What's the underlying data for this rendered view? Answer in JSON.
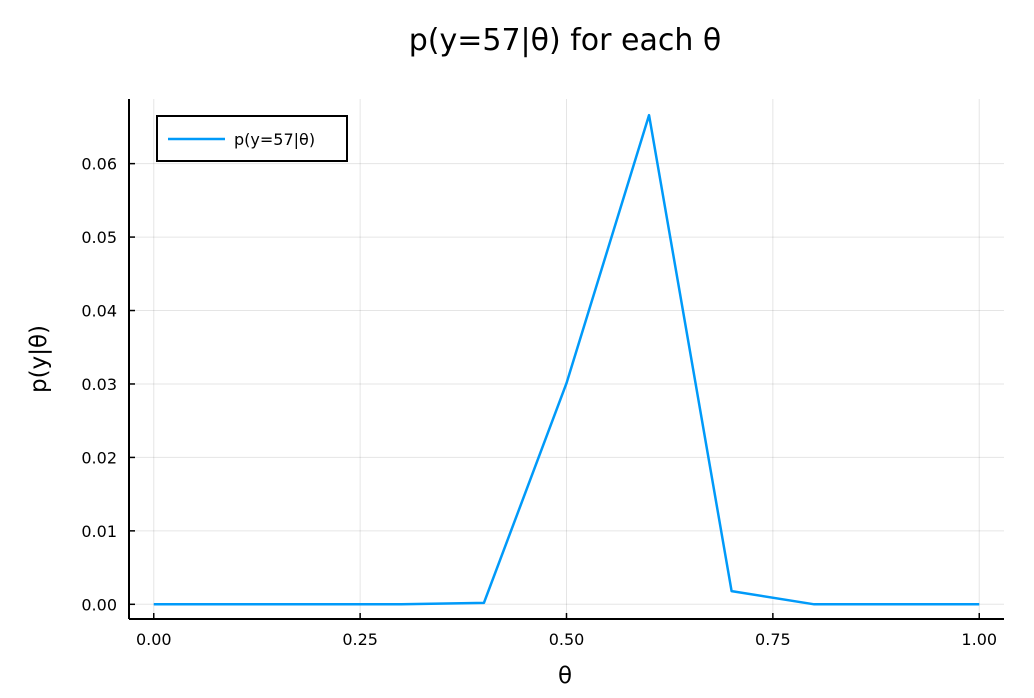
{
  "chart_data": {
    "type": "line",
    "title": "p(y=57|θ) for each θ",
    "xlabel": "θ",
    "ylabel": "p(y|θ)",
    "xlim": [
      -0.03,
      1.03
    ],
    "ylim": [
      -0.002,
      0.0688
    ],
    "x_ticks": [
      0.0,
      0.25,
      0.5,
      0.75,
      1.0
    ],
    "x_tick_labels": [
      "0.00",
      "0.25",
      "0.50",
      "0.75",
      "1.00"
    ],
    "y_ticks": [
      0.0,
      0.01,
      0.02,
      0.03,
      0.04,
      0.05,
      0.06
    ],
    "y_tick_labels": [
      "0.00",
      "0.01",
      "0.02",
      "0.03",
      "0.04",
      "0.05",
      "0.06"
    ],
    "grid": true,
    "legend": {
      "position": "top-left"
    },
    "series": [
      {
        "name": "p(y=57|θ)",
        "color": "#009af9",
        "x": [
          0.0,
          0.1,
          0.2,
          0.3,
          0.4,
          0.5,
          0.6,
          0.7,
          0.8,
          0.9,
          1.0
        ],
        "y": [
          0.0,
          0.0,
          0.0,
          0.0,
          0.0002,
          0.0301,
          0.0666,
          0.0018,
          0.0,
          0.0,
          0.0
        ]
      }
    ]
  }
}
